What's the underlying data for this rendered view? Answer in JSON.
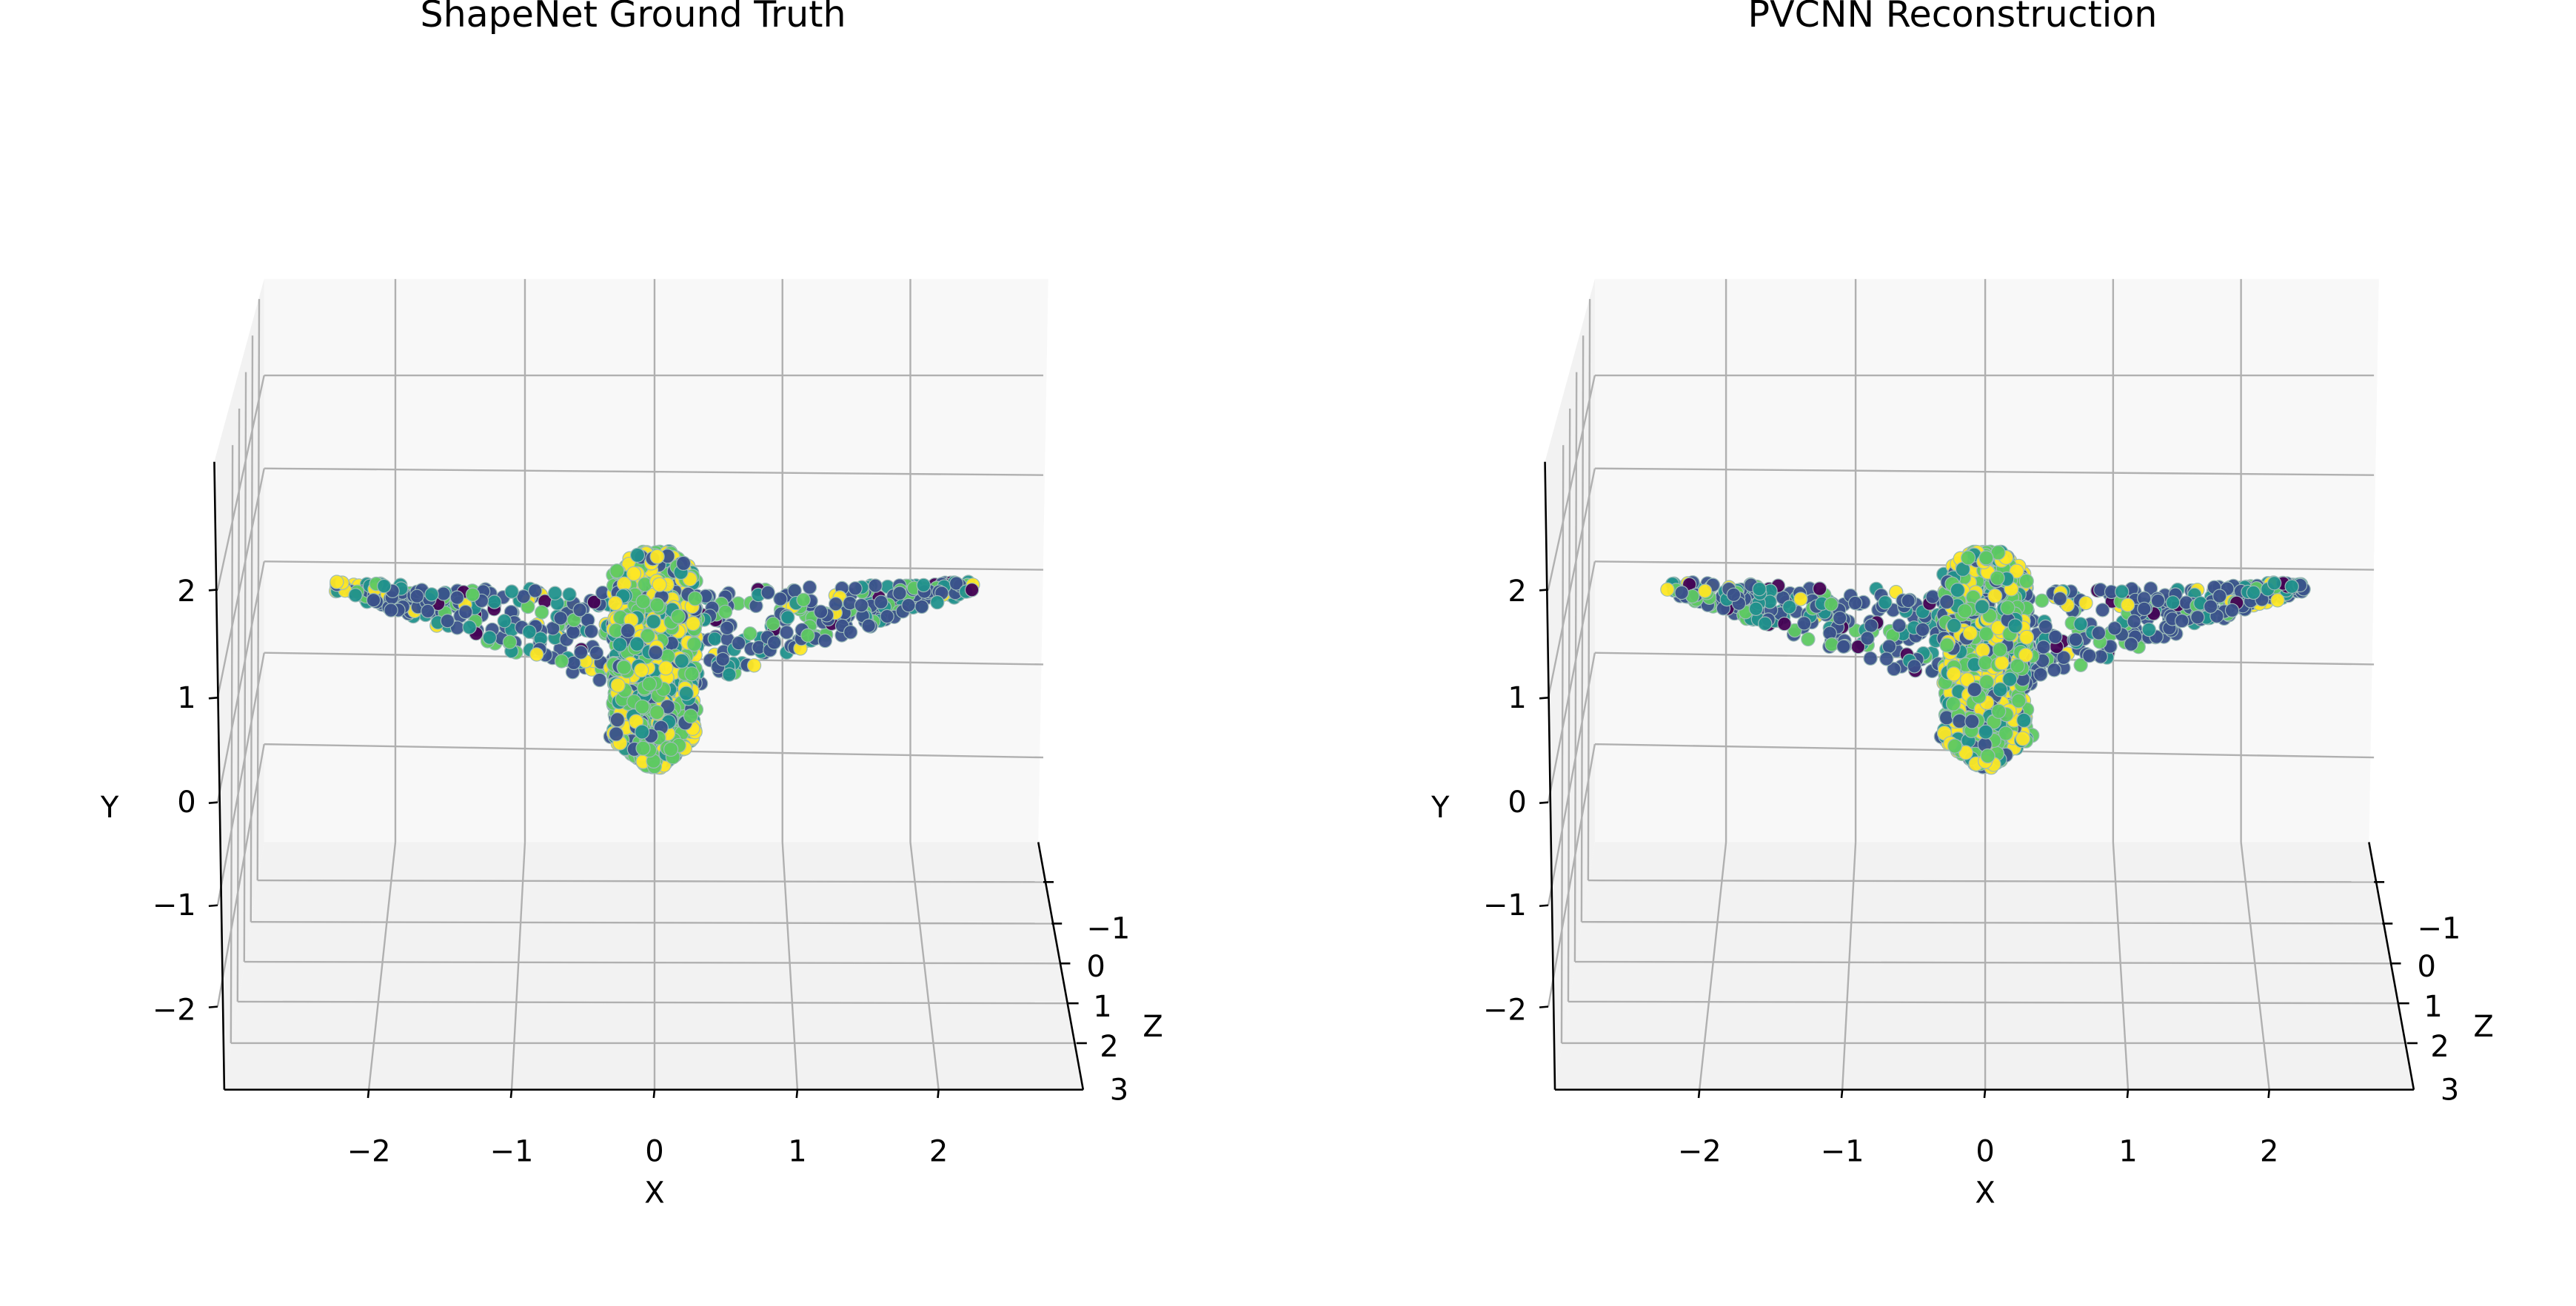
{
  "colors": {
    "pane_floor": "#f2f2f2",
    "pane_wall": "#f8f8f8",
    "grid": "#b0b0b0",
    "axis_line": "#000000",
    "colormap": [
      "#440154",
      "#3b528b",
      "#21918c",
      "#5ec962",
      "#fde725"
    ]
  },
  "chart_data": [
    {
      "type": "scatter3d",
      "title": "ShapeNet Ground Truth",
      "xlabel": "X",
      "ylabel": "Y",
      "zlabel": "Z",
      "x_ticks": [
        "−2",
        "−1",
        "0",
        "1",
        "2"
      ],
      "y_ticks": [
        "−2",
        "−1",
        "0",
        "1",
        "2"
      ],
      "z_ticks": [
        "−1",
        "0",
        "1",
        "2",
        "3"
      ],
      "xlim": [
        -3,
        3
      ],
      "ylim": [
        -3,
        3
      ],
      "zlim": [
        -2,
        3
      ],
      "grid": true,
      "colormap": "viridis",
      "shape": "airplane",
      "seed": 11
    },
    {
      "type": "scatter3d",
      "title": "PVCNN Reconstruction",
      "xlabel": "X",
      "ylabel": "Y",
      "zlabel": "Z",
      "x_ticks": [
        "−2",
        "−1",
        "0",
        "1",
        "2"
      ],
      "y_ticks": [
        "−2",
        "−1",
        "0",
        "1",
        "2"
      ],
      "z_ticks": [
        "−1",
        "0",
        "1",
        "2",
        "3"
      ],
      "xlim": [
        -3,
        3
      ],
      "ylim": [
        -3,
        3
      ],
      "zlim": [
        -2,
        3
      ],
      "grid": true,
      "colormap": "viridis",
      "shape": "airplane",
      "seed": 29
    }
  ]
}
